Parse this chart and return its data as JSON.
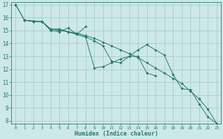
{
  "xlabel": "Humidex (Indice chaleur)",
  "bg_color": "#cce8e8",
  "grid_color": "#aacccc",
  "line_color": "#2a7a6a",
  "xlim": [
    -0.5,
    23.5
  ],
  "ylim": [
    7.8,
    17.2
  ],
  "xticks": [
    0,
    1,
    2,
    3,
    4,
    5,
    6,
    7,
    8,
    9,
    10,
    11,
    12,
    13,
    14,
    15,
    16,
    17,
    18,
    19,
    20,
    21,
    22,
    23
  ],
  "yticks": [
    8,
    9,
    10,
    11,
    12,
    13,
    14,
    15,
    16,
    17
  ],
  "series": [
    {
      "x": [
        0,
        1,
        2,
        3,
        4,
        5,
        6,
        7,
        8,
        9,
        10,
        11,
        12,
        13,
        14,
        15,
        16,
        17,
        18,
        19,
        20,
        21,
        22,
        23
      ],
      "y": [
        17.0,
        15.8,
        null,
        15.7,
        15.0,
        14.9,
        15.2,
        14.7,
        15.3,
        null,
        null,
        null,
        null,
        null,
        null,
        null,
        null,
        null,
        null,
        null,
        null,
        null,
        null,
        null
      ]
    },
    {
      "x": [
        0,
        1,
        2,
        3,
        4,
        5,
        6,
        7,
        8,
        9,
        10,
        11,
        12,
        13,
        14,
        15,
        16,
        17,
        18,
        19,
        20,
        21,
        22,
        23
      ],
      "y": [
        null,
        15.8,
        15.7,
        15.7,
        15.1,
        15.1,
        14.9,
        14.7,
        14.5,
        12.1,
        12.2,
        12.5,
        12.8,
        13.0,
        13.0,
        11.7,
        11.5,
        null,
        null,
        null,
        null,
        null,
        null,
        null
      ]
    },
    {
      "x": [
        0,
        1,
        2,
        3,
        4,
        5,
        6,
        7,
        8,
        9,
        10,
        11,
        12,
        13,
        14,
        15,
        16,
        17,
        18,
        19,
        20,
        21,
        22,
        23
      ],
      "y": [
        null,
        15.8,
        15.7,
        15.7,
        15.1,
        15.1,
        14.9,
        14.7,
        14.5,
        14.2,
        13.8,
        12.6,
        12.5,
        13.0,
        13.5,
        13.9,
        13.5,
        13.1,
        11.6,
        10.5,
        10.4,
        9.3,
        8.3,
        7.8
      ]
    },
    {
      "x": [
        0,
        1,
        2,
        3,
        4,
        5,
        6,
        7,
        8,
        9,
        10,
        11,
        12,
        13,
        14,
        15,
        16,
        17,
        18,
        19,
        20,
        21,
        22,
        23
      ],
      "y": [
        17.0,
        15.8,
        15.7,
        15.7,
        15.1,
        15.0,
        14.9,
        14.8,
        14.6,
        14.4,
        14.1,
        13.8,
        13.5,
        13.2,
        12.9,
        12.5,
        12.1,
        11.7,
        11.3,
        10.9,
        10.3,
        9.7,
        8.9,
        7.8
      ]
    }
  ]
}
